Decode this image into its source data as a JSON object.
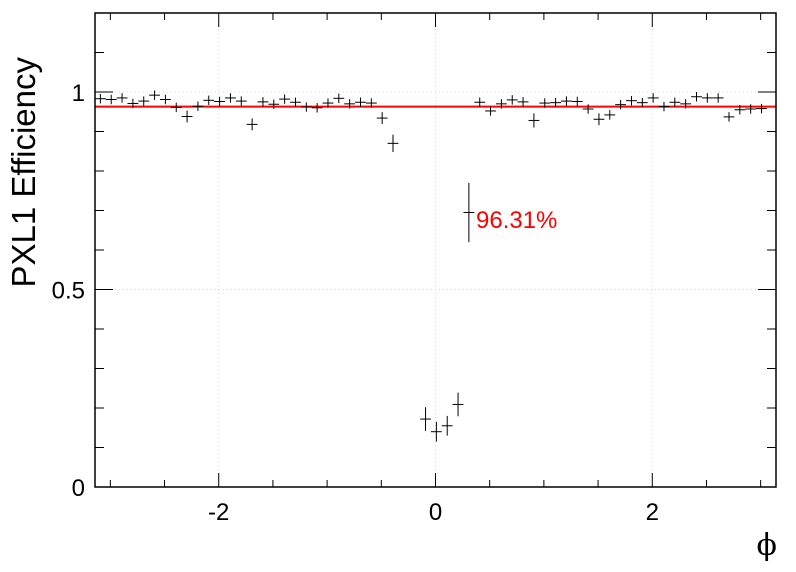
{
  "chart_data": {
    "type": "scatter",
    "ylabel": "PXL1 Efficiency",
    "xlabel": "ϕ",
    "xlim": [
      -3.1416,
      3.1416
    ],
    "ylim": [
      0,
      1.2
    ],
    "x_ticks": [
      {
        "value": -2,
        "label": "-2"
      },
      {
        "value": 0,
        "label": "0"
      },
      {
        "value": 2,
        "label": "2"
      }
    ],
    "y_ticks": [
      {
        "value": 0,
        "label": "0"
      },
      {
        "value": 0.5,
        "label": "0.5"
      },
      {
        "value": 1,
        "label": "1"
      }
    ],
    "grid": true,
    "fit_line": {
      "value": 0.9631,
      "color": "#ff0000"
    },
    "annotation": {
      "text": "96.31%",
      "color": "#ff0000"
    },
    "marker_color": "#000000",
    "bin_width": 0.1,
    "points": [
      {
        "x": -3.092,
        "y": 0.983,
        "err": 0.006
      },
      {
        "x": -2.992,
        "y": 0.981,
        "err": 0.006
      },
      {
        "x": -2.892,
        "y": 0.985,
        "err": 0.006
      },
      {
        "x": -2.792,
        "y": 0.971,
        "err": 0.008
      },
      {
        "x": -2.692,
        "y": 0.977,
        "err": 0.007
      },
      {
        "x": -2.592,
        "y": 0.992,
        "err": 0.005
      },
      {
        "x": -2.492,
        "y": 0.981,
        "err": 0.006
      },
      {
        "x": -2.392,
        "y": 0.961,
        "err": 0.01
      },
      {
        "x": -2.292,
        "y": 0.938,
        "err": 0.015
      },
      {
        "x": -2.192,
        "y": 0.964,
        "err": 0.01
      },
      {
        "x": -2.092,
        "y": 0.979,
        "err": 0.007
      },
      {
        "x": -1.992,
        "y": 0.976,
        "err": 0.007
      },
      {
        "x": -1.892,
        "y": 0.985,
        "err": 0.006
      },
      {
        "x": -1.792,
        "y": 0.977,
        "err": 0.007
      },
      {
        "x": -1.692,
        "y": 0.918,
        "err": 0.015
      },
      {
        "x": -1.592,
        "y": 0.975,
        "err": 0.007
      },
      {
        "x": -1.492,
        "y": 0.969,
        "err": 0.008
      },
      {
        "x": -1.392,
        "y": 0.982,
        "err": 0.006
      },
      {
        "x": -1.292,
        "y": 0.974,
        "err": 0.007
      },
      {
        "x": -1.192,
        "y": 0.962,
        "err": 0.009
      },
      {
        "x": -1.092,
        "y": 0.96,
        "err": 0.009
      },
      {
        "x": -0.992,
        "y": 0.972,
        "err": 0.008
      },
      {
        "x": -0.892,
        "y": 0.984,
        "err": 0.006
      },
      {
        "x": -0.792,
        "y": 0.97,
        "err": 0.008
      },
      {
        "x": -0.692,
        "y": 0.974,
        "err": 0.007
      },
      {
        "x": -0.592,
        "y": 0.972,
        "err": 0.008
      },
      {
        "x": -0.492,
        "y": 0.934,
        "err": 0.015
      },
      {
        "x": -0.392,
        "y": 0.87,
        "err": 0.022
      },
      {
        "x": -0.092,
        "y": 0.172,
        "err": 0.03
      },
      {
        "x": 0.008,
        "y": 0.14,
        "err": 0.025
      },
      {
        "x": 0.108,
        "y": 0.155,
        "err": 0.025
      },
      {
        "x": 0.208,
        "y": 0.209,
        "err": 0.03
      },
      {
        "x": 0.308,
        "y": 0.695,
        "err": 0.075
      },
      {
        "x": 0.408,
        "y": 0.974,
        "err": 0.007
      },
      {
        "x": 0.508,
        "y": 0.952,
        "err": 0.01
      },
      {
        "x": 0.608,
        "y": 0.97,
        "err": 0.008
      },
      {
        "x": 0.708,
        "y": 0.98,
        "err": 0.007
      },
      {
        "x": 0.808,
        "y": 0.975,
        "err": 0.007
      },
      {
        "x": 0.908,
        "y": 0.928,
        "err": 0.018
      },
      {
        "x": 1.008,
        "y": 0.972,
        "err": 0.008
      },
      {
        "x": 1.108,
        "y": 0.973,
        "err": 0.007
      },
      {
        "x": 1.208,
        "y": 0.977,
        "err": 0.007
      },
      {
        "x": 1.308,
        "y": 0.976,
        "err": 0.007
      },
      {
        "x": 1.408,
        "y": 0.957,
        "err": 0.011
      },
      {
        "x": 1.508,
        "y": 0.931,
        "err": 0.015
      },
      {
        "x": 1.608,
        "y": 0.942,
        "err": 0.012
      },
      {
        "x": 1.708,
        "y": 0.968,
        "err": 0.008
      },
      {
        "x": 1.808,
        "y": 0.978,
        "err": 0.007
      },
      {
        "x": 1.908,
        "y": 0.973,
        "err": 0.008
      },
      {
        "x": 2.008,
        "y": 0.985,
        "err": 0.006
      },
      {
        "x": 2.108,
        "y": 0.963,
        "err": 0.01
      },
      {
        "x": 2.208,
        "y": 0.974,
        "err": 0.007
      },
      {
        "x": 2.308,
        "y": 0.97,
        "err": 0.008
      },
      {
        "x": 2.408,
        "y": 0.988,
        "err": 0.006
      },
      {
        "x": 2.508,
        "y": 0.985,
        "err": 0.006
      },
      {
        "x": 2.608,
        "y": 0.985,
        "err": 0.006
      },
      {
        "x": 2.708,
        "y": 0.937,
        "err": 0.012
      },
      {
        "x": 2.808,
        "y": 0.955,
        "err": 0.012
      },
      {
        "x": 2.908,
        "y": 0.957,
        "err": 0.012
      },
      {
        "x": 3.008,
        "y": 0.958,
        "err": 0.012
      }
    ]
  }
}
